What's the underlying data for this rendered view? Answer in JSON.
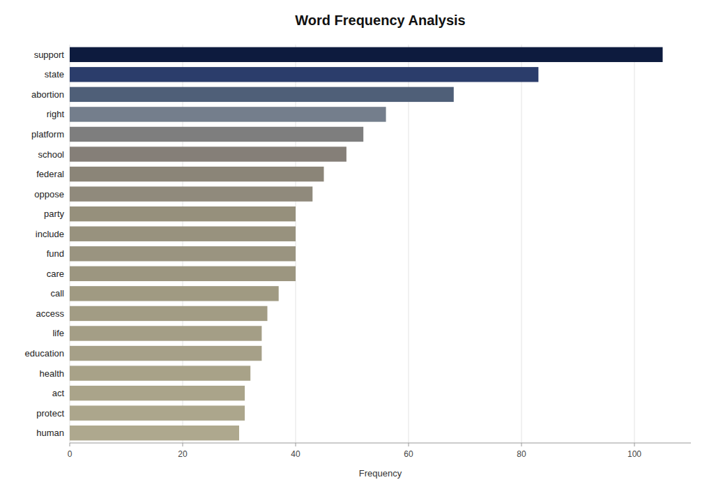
{
  "chart_data": {
    "type": "bar",
    "orientation": "horizontal",
    "title": "Word Frequency Analysis",
    "xlabel": "Frequency",
    "categories": [
      "support",
      "state",
      "abortion",
      "right",
      "platform",
      "school",
      "federal",
      "oppose",
      "party",
      "include",
      "fund",
      "care",
      "call",
      "access",
      "life",
      "education",
      "health",
      "act",
      "protect",
      "human"
    ],
    "values": [
      105,
      83,
      68,
      56,
      52,
      49,
      45,
      43,
      40,
      40,
      40,
      40,
      37,
      35,
      34,
      34,
      32,
      31,
      31,
      30
    ],
    "colors": [
      "#0d1b3e",
      "#2b3d6b",
      "#4f5f78",
      "#747e8c",
      "#7e7e7e",
      "#857f78",
      "#8b8578",
      "#908a7c",
      "#96907c",
      "#98927e",
      "#9a9480",
      "#9c9680",
      "#a09a82",
      "#a29c84",
      "#a49e86",
      "#a6a088",
      "#a8a288",
      "#aaA48a",
      "#acA68c",
      "#aeA88e"
    ],
    "xlim": [
      0,
      110
    ],
    "xticks": [
      0,
      20,
      40,
      60,
      80,
      100
    ],
    "grid": true
  }
}
